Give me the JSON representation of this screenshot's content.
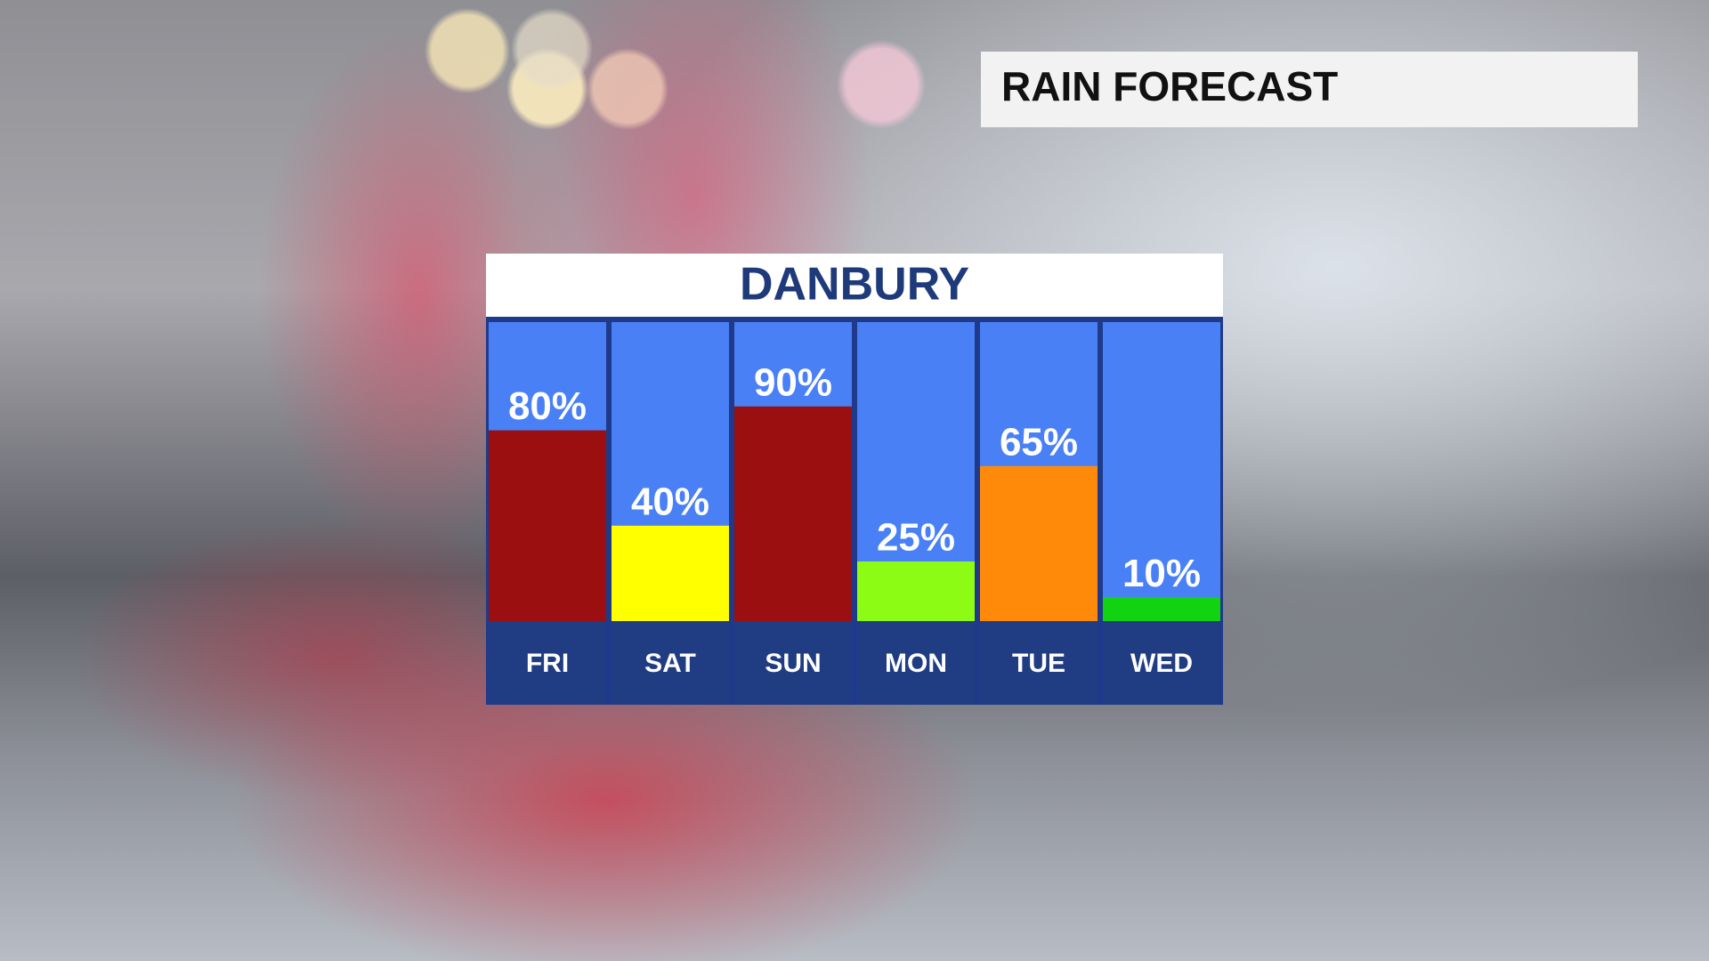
{
  "header": {
    "title": "RAIN FORECAST"
  },
  "chart_data": {
    "type": "bar",
    "title": "DANBURY",
    "categories": [
      "FRI",
      "SAT",
      "SUN",
      "MON",
      "TUE",
      "WED"
    ],
    "values": [
      80,
      40,
      90,
      25,
      65,
      10
    ],
    "value_labels": [
      "80%",
      "40%",
      "90%",
      "25%",
      "65%",
      "10%"
    ],
    "colors": [
      "#9b0f10",
      "#ffff00",
      "#9b0f10",
      "#8cfc14",
      "#ff8a0a",
      "#12d312"
    ],
    "ylim": [
      0,
      100
    ]
  }
}
